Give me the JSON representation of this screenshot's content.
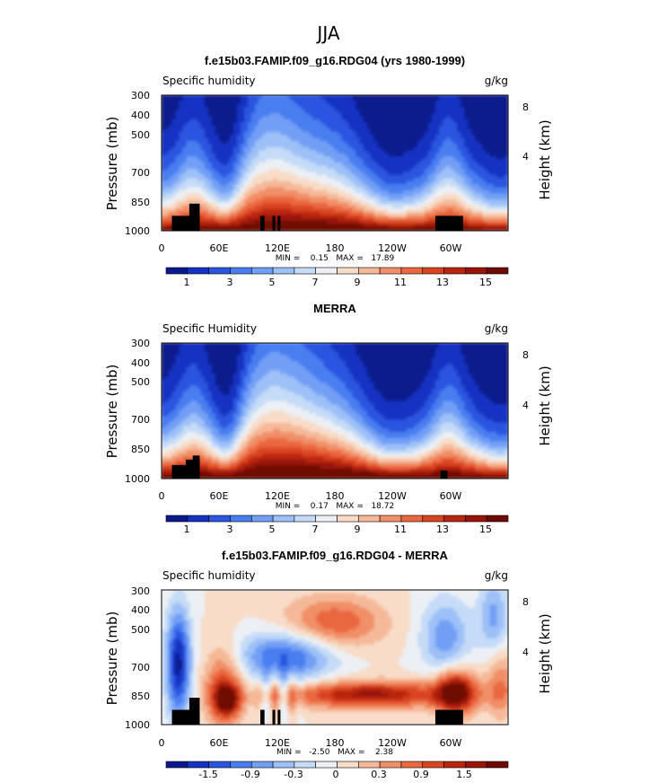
{
  "figure_title": "JJA",
  "chart_data": [
    {
      "type": "heatmap",
      "title": "f.e15b03.FAMIP.f09_g16.RDG04 (yrs 1980-1999)",
      "left_label": "Specific humidity",
      "right_label": "g/kg",
      "ylabel": "Pressure (mb)",
      "y2label": "Height (km)",
      "xticks": [
        "0",
        "60E",
        "120E",
        "180",
        "120W",
        "60W"
      ],
      "yticks": [
        "300",
        "400",
        "500",
        "700",
        "850",
        "1000"
      ],
      "y2ticks": [
        "8",
        "4"
      ],
      "stats": "MIN =    0.15   MAX =   17.89",
      "colorbar_labels": [
        "1",
        "3",
        "5",
        "7",
        "9",
        "11",
        "13",
        "15"
      ]
    },
    {
      "type": "heatmap",
      "title": "MERRA",
      "left_label": "Specific Humidity",
      "right_label": "g/kg",
      "ylabel": "Pressure (mb)",
      "y2label": "Height (km)",
      "xticks": [
        "0",
        "60E",
        "120E",
        "180",
        "120W",
        "60W"
      ],
      "yticks": [
        "300",
        "400",
        "500",
        "700",
        "850",
        "1000"
      ],
      "y2ticks": [
        "8",
        "4"
      ],
      "stats": "MIN =    0.17   MAX =   18.72",
      "colorbar_labels": [
        "1",
        "3",
        "5",
        "7",
        "9",
        "11",
        "13",
        "15"
      ]
    },
    {
      "type": "heatmap",
      "title": "f.e15b03.FAMIP.f09_g16.RDG04 - MERRA",
      "left_label": "Specific humidity",
      "right_label": "g/kg",
      "ylabel": "Pressure (mb)",
      "y2label": "Height (km)",
      "xticks": [
        "0",
        "60E",
        "120E",
        "180",
        "120W",
        "60W"
      ],
      "yticks": [
        "300",
        "400",
        "500",
        "700",
        "850",
        "1000"
      ],
      "y2ticks": [
        "8",
        "4"
      ],
      "stats": "MIN =   -2.50   MAX =    2.38",
      "colorbar_labels": [
        "-1.5",
        "-0.9",
        "-0.3",
        "0",
        "0.3",
        "0.9",
        "1.5"
      ]
    }
  ],
  "colors": {
    "ramp": [
      "#0a1a8c",
      "#1533c2",
      "#2a55e0",
      "#4a7ef0",
      "#729ff5",
      "#9cc0f7",
      "#c5dbf7",
      "#ecf0f5",
      "#f8dcc8",
      "#f5b999",
      "#f08f68",
      "#ea6840",
      "#d94420",
      "#b9260f",
      "#961507",
      "#6e0a04"
    ]
  }
}
